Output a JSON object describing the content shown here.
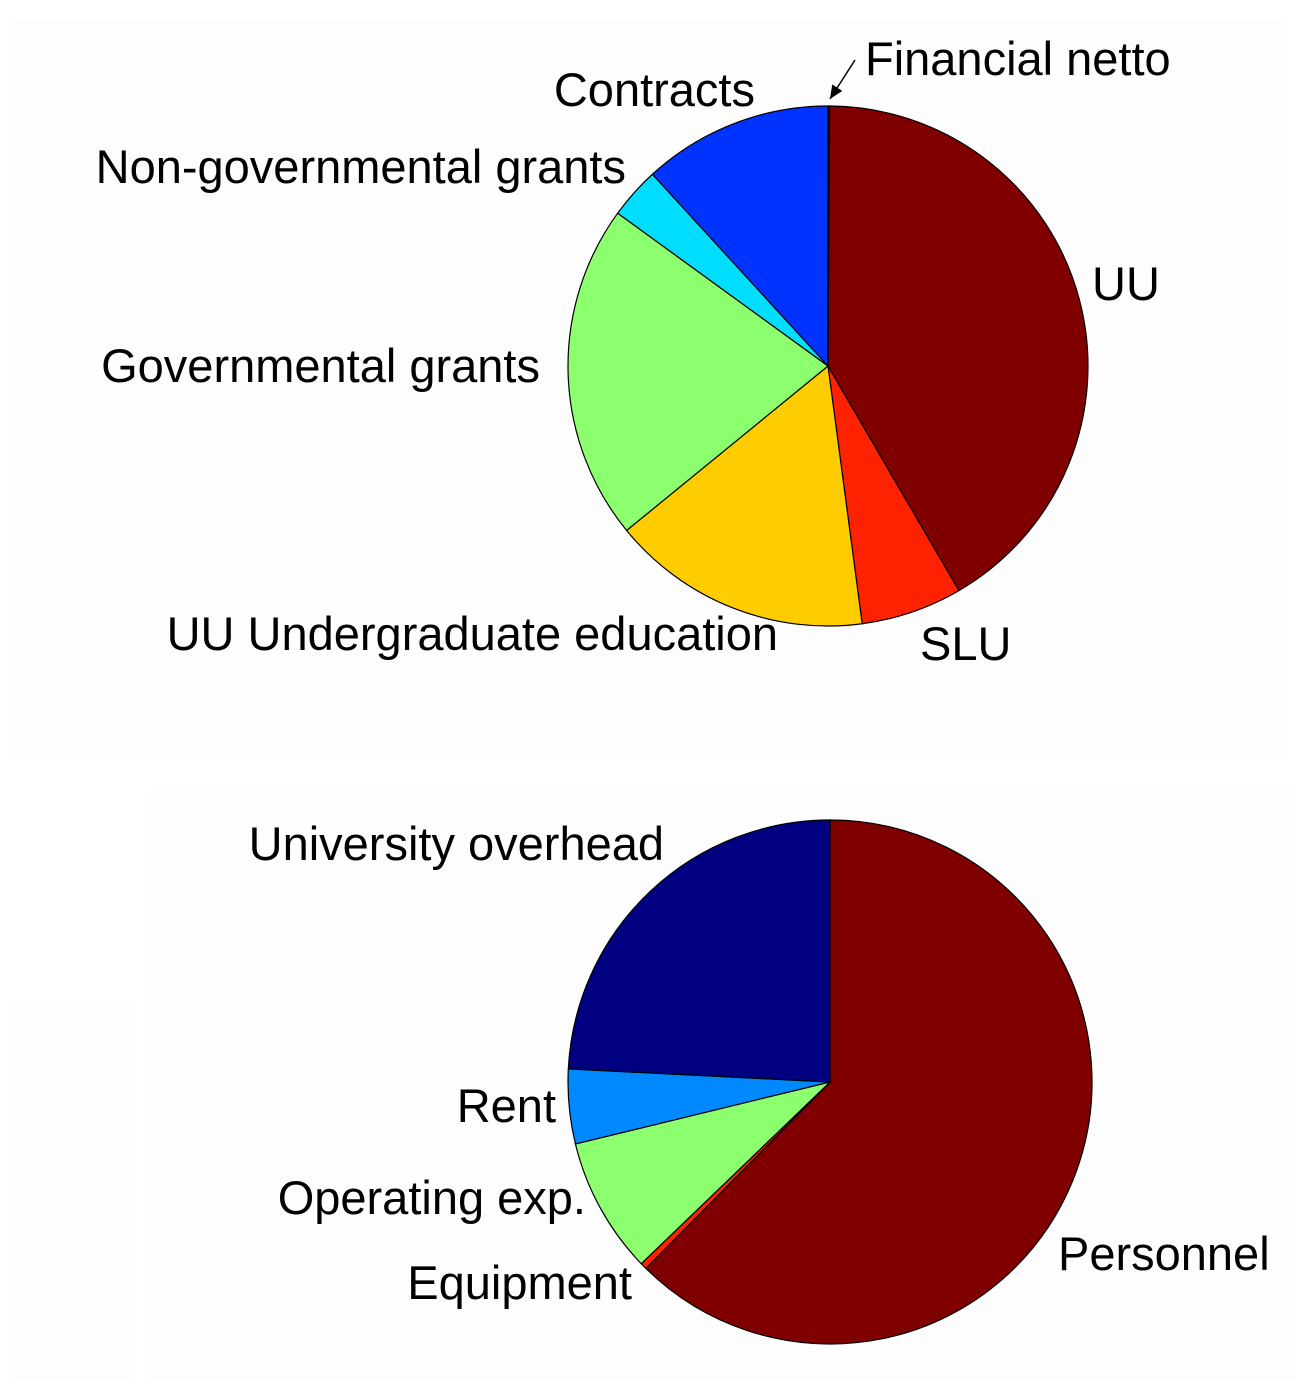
{
  "chart_data": [
    {
      "type": "pie",
      "title": "",
      "slices": [
        {
          "label": "Financial netto",
          "value": 0.1,
          "color": "#800000",
          "text_anchor": "start"
        },
        {
          "label": "UU",
          "value": 41.5,
          "color": "#800000",
          "text_anchor": "start"
        },
        {
          "label": "SLU",
          "value": 6.3,
          "color": "#ff2200",
          "text_anchor": "start"
        },
        {
          "label": "UU Undergraduate education",
          "value": 16.2,
          "color": "#ffcc00",
          "text_anchor": "end"
        },
        {
          "label": "Governmental grants",
          "value": 20.9,
          "color": "#8cff6e",
          "text_anchor": "end"
        },
        {
          "label": "Non-governmental grants",
          "value": 3.2,
          "color": "#00ddff",
          "text_anchor": "end"
        },
        {
          "label": "Contracts",
          "value": 11.8,
          "color": "#0033ff",
          "text_anchor": "end"
        }
      ]
    },
    {
      "type": "pie",
      "title": "",
      "slices": [
        {
          "label": "Personnel",
          "value": 62.4,
          "color": "#800000",
          "text_anchor": "start"
        },
        {
          "label": "Equipment",
          "value": 0.4,
          "color": "#ff2200",
          "text_anchor": "end"
        },
        {
          "label": "Operating exp.",
          "value": 8.4,
          "color": "#8cff6e",
          "text_anchor": "end"
        },
        {
          "label": "Rent",
          "value": 4.6,
          "color": "#0088ff",
          "text_anchor": "end"
        },
        {
          "label": "University overhead",
          "value": 24.2,
          "color": "#000080",
          "text_anchor": "end"
        }
      ]
    }
  ]
}
